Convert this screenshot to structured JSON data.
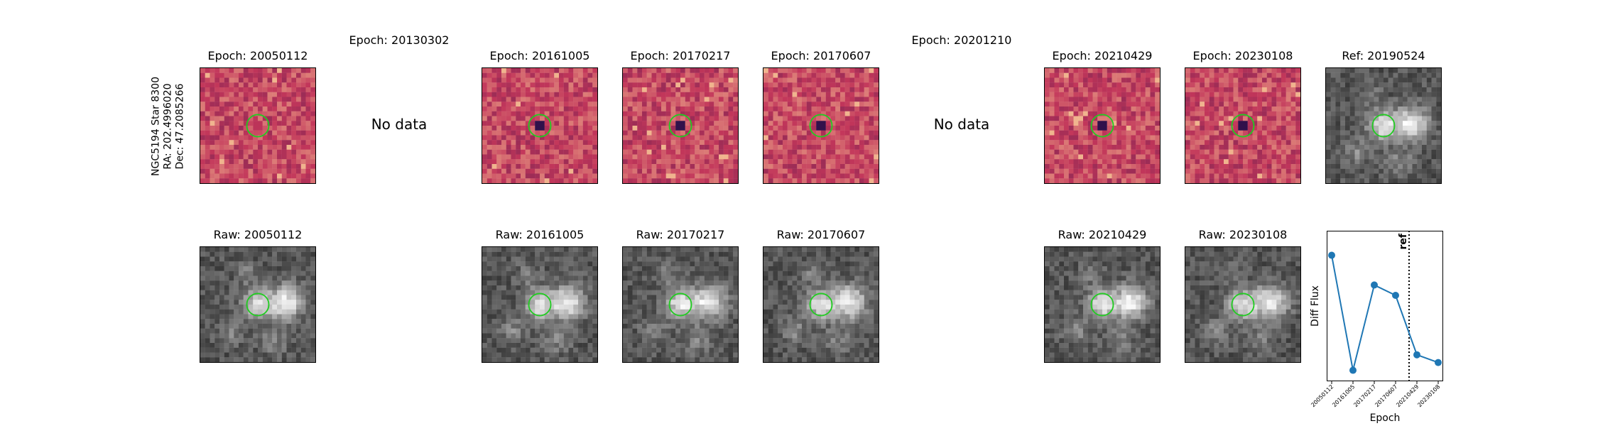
{
  "star": {
    "name": "NGC5194 Star 8300",
    "ra": "RA: 202.4996020",
    "dec": "Dec: 47.2085266"
  },
  "top_row": [
    {
      "title": "Epoch: 20050112",
      "kind": "diff",
      "variant": 0
    },
    {
      "title": "Epoch: 20130302",
      "kind": "nodata",
      "nodata_text": "No data"
    },
    {
      "title": "Epoch: 20161005",
      "kind": "diff",
      "variant": 1
    },
    {
      "title": "Epoch: 20170217",
      "kind": "diff",
      "variant": 2
    },
    {
      "title": "Epoch: 20170607",
      "kind": "diff",
      "variant": 3
    },
    {
      "title": "Epoch: 20201210",
      "kind": "nodata",
      "nodata_text": "No data"
    },
    {
      "title": "Epoch: 20210429",
      "kind": "diff",
      "variant": 4
    },
    {
      "title": "Epoch: 20230108",
      "kind": "diff",
      "variant": 5
    },
    {
      "title": "Ref: 20190524",
      "kind": "raw",
      "variant": 6
    }
  ],
  "bottom_row": [
    {
      "title": "Raw: 20050112",
      "variant": 0
    },
    {
      "title": "Raw: 20161005",
      "variant": 1
    },
    {
      "title": "Raw: 20170217",
      "variant": 2
    },
    {
      "title": "Raw: 20170607",
      "variant": 3
    },
    {
      "title": "Raw: 20210429",
      "variant": 4
    },
    {
      "title": "Raw: 20230108",
      "variant": 5
    }
  ],
  "colors": {
    "circle": "#22cc22",
    "line": "#1f77b4",
    "diff_low": "#2b0f4a",
    "diff_mid": "#c2365a",
    "diff_high": "#fcd39b"
  },
  "chart_data": {
    "type": "line",
    "x": [
      "20050112",
      "20161005",
      "20170217",
      "20170607",
      "20210429",
      "20230108"
    ],
    "series": [
      {
        "values": [
          0.92,
          0.03,
          0.69,
          0.61,
          0.15,
          0.09
        ]
      }
    ],
    "xlabel": "Epoch",
    "ylabel": "Diff Flux",
    "ref_line": {
      "label": "ref",
      "between": [
        "20170607",
        "20210429"
      ]
    },
    "grid": false,
    "y_ticks_shown": false
  }
}
